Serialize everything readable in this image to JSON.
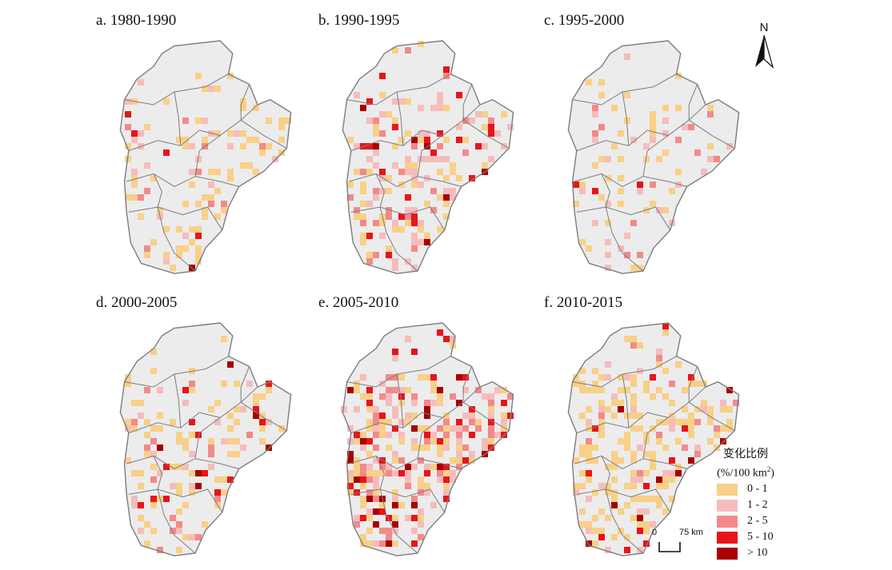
{
  "panels": [
    {
      "title": "a. 1980-1990",
      "cell_mix": {
        "0-1": 0.68,
        "1-2": 0.2,
        "2-5": 0.06,
        "5-10": 0.04,
        ">10": 0.02
      },
      "density": 0.16
    },
    {
      "title": "b. 1990-1995",
      "cell_mix": {
        "0-1": 0.35,
        "1-2": 0.3,
        "2-5": 0.15,
        "5-10": 0.15,
        ">10": 0.05
      },
      "density": 0.3
    },
    {
      "title": "c. 1995-2000",
      "cell_mix": {
        "0-1": 0.55,
        "1-2": 0.3,
        "2-5": 0.1,
        "5-10": 0.04,
        ">10": 0.01
      },
      "density": 0.15
    },
    {
      "title": "d. 2000-2005",
      "cell_mix": {
        "0-1": 0.55,
        "1-2": 0.22,
        "2-5": 0.1,
        "5-10": 0.09,
        ">10": 0.04
      },
      "density": 0.24
    },
    {
      "title": "e. 2005-2010",
      "cell_mix": {
        "0-1": 0.3,
        "1-2": 0.25,
        "2-5": 0.15,
        "5-10": 0.2,
        ">10": 0.1
      },
      "density": 0.42
    },
    {
      "title": "f. 2010-2015",
      "cell_mix": {
        "0-1": 0.7,
        "1-2": 0.12,
        "2-5": 0.08,
        "5-10": 0.06,
        ">10": 0.04
      },
      "density": 0.36
    }
  ],
  "north_arrow": {
    "label": "N"
  },
  "legend": {
    "title": "变化比例",
    "unit_prefix": "(%/100 km",
    "unit_sup": "2",
    "unit_suffix": ")",
    "classes": [
      {
        "label": "0 - 1",
        "color": "#f8d088"
      },
      {
        "label": "1 - 2",
        "color": "#f6bcbc"
      },
      {
        "label": "2 - 5",
        "color": "#f28a8a"
      },
      {
        "label": "5 - 10",
        "color": "#e8141a"
      },
      {
        "label": "> 10",
        "color": "#a80000"
      }
    ]
  },
  "scale_bar": {
    "zero": "0",
    "end": "75 km"
  },
  "map_style": {
    "land": "#ececec",
    "border": "#7d7d7d"
  }
}
